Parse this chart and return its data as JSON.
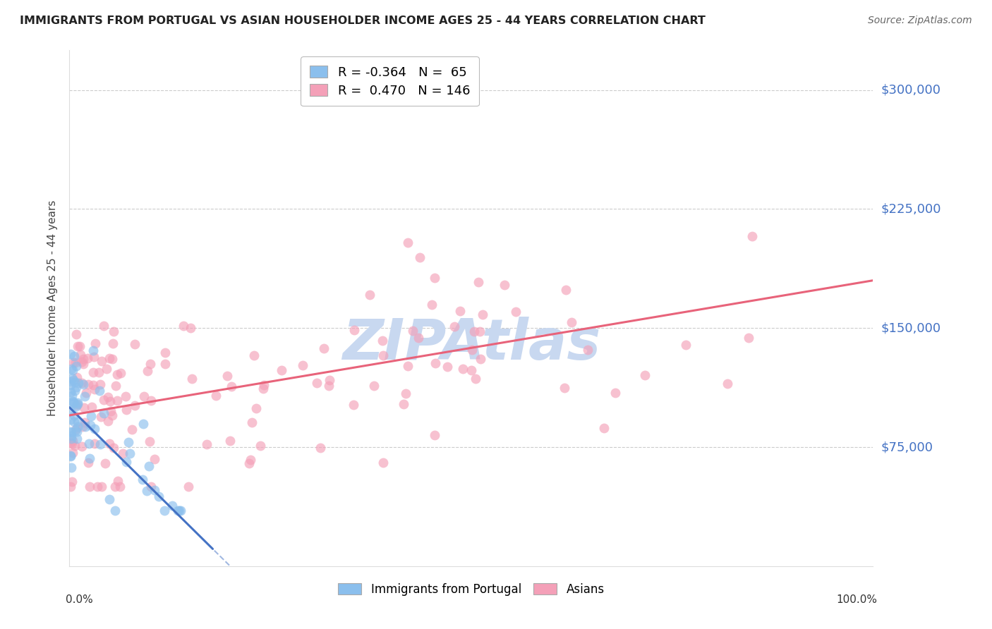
{
  "title": "IMMIGRANTS FROM PORTUGAL VS ASIAN HOUSEHOLDER INCOME AGES 25 - 44 YEARS CORRELATION CHART",
  "source": "Source: ZipAtlas.com",
  "ylabel": "Householder Income Ages 25 - 44 years",
  "ytick_labels": [
    "$75,000",
    "$150,000",
    "$225,000",
    "$300,000"
  ],
  "ytick_values": [
    75000,
    150000,
    225000,
    300000
  ],
  "xlim": [
    0.0,
    1.0
  ],
  "ylim": [
    0,
    325000
  ],
  "legend_blue_r": "-0.364",
  "legend_blue_n": "65",
  "legend_pink_r": "0.470",
  "legend_pink_n": "146",
  "legend_label_blue": "Immigrants from Portugal",
  "legend_label_pink": "Asians",
  "blue_color": "#8BBFED",
  "pink_color": "#F4A0B8",
  "blue_line_color": "#4472C4",
  "pink_line_color": "#E8637A",
  "title_color": "#222222",
  "source_color": "#666666",
  "ytick_color": "#4472C4",
  "background_color": "#FFFFFF",
  "grid_color": "#CCCCCC",
  "watermark_color": "#C8D8F0",
  "blue_intercept": 100000,
  "blue_slope": -500000,
  "pink_intercept": 95000,
  "pink_slope": 85000
}
